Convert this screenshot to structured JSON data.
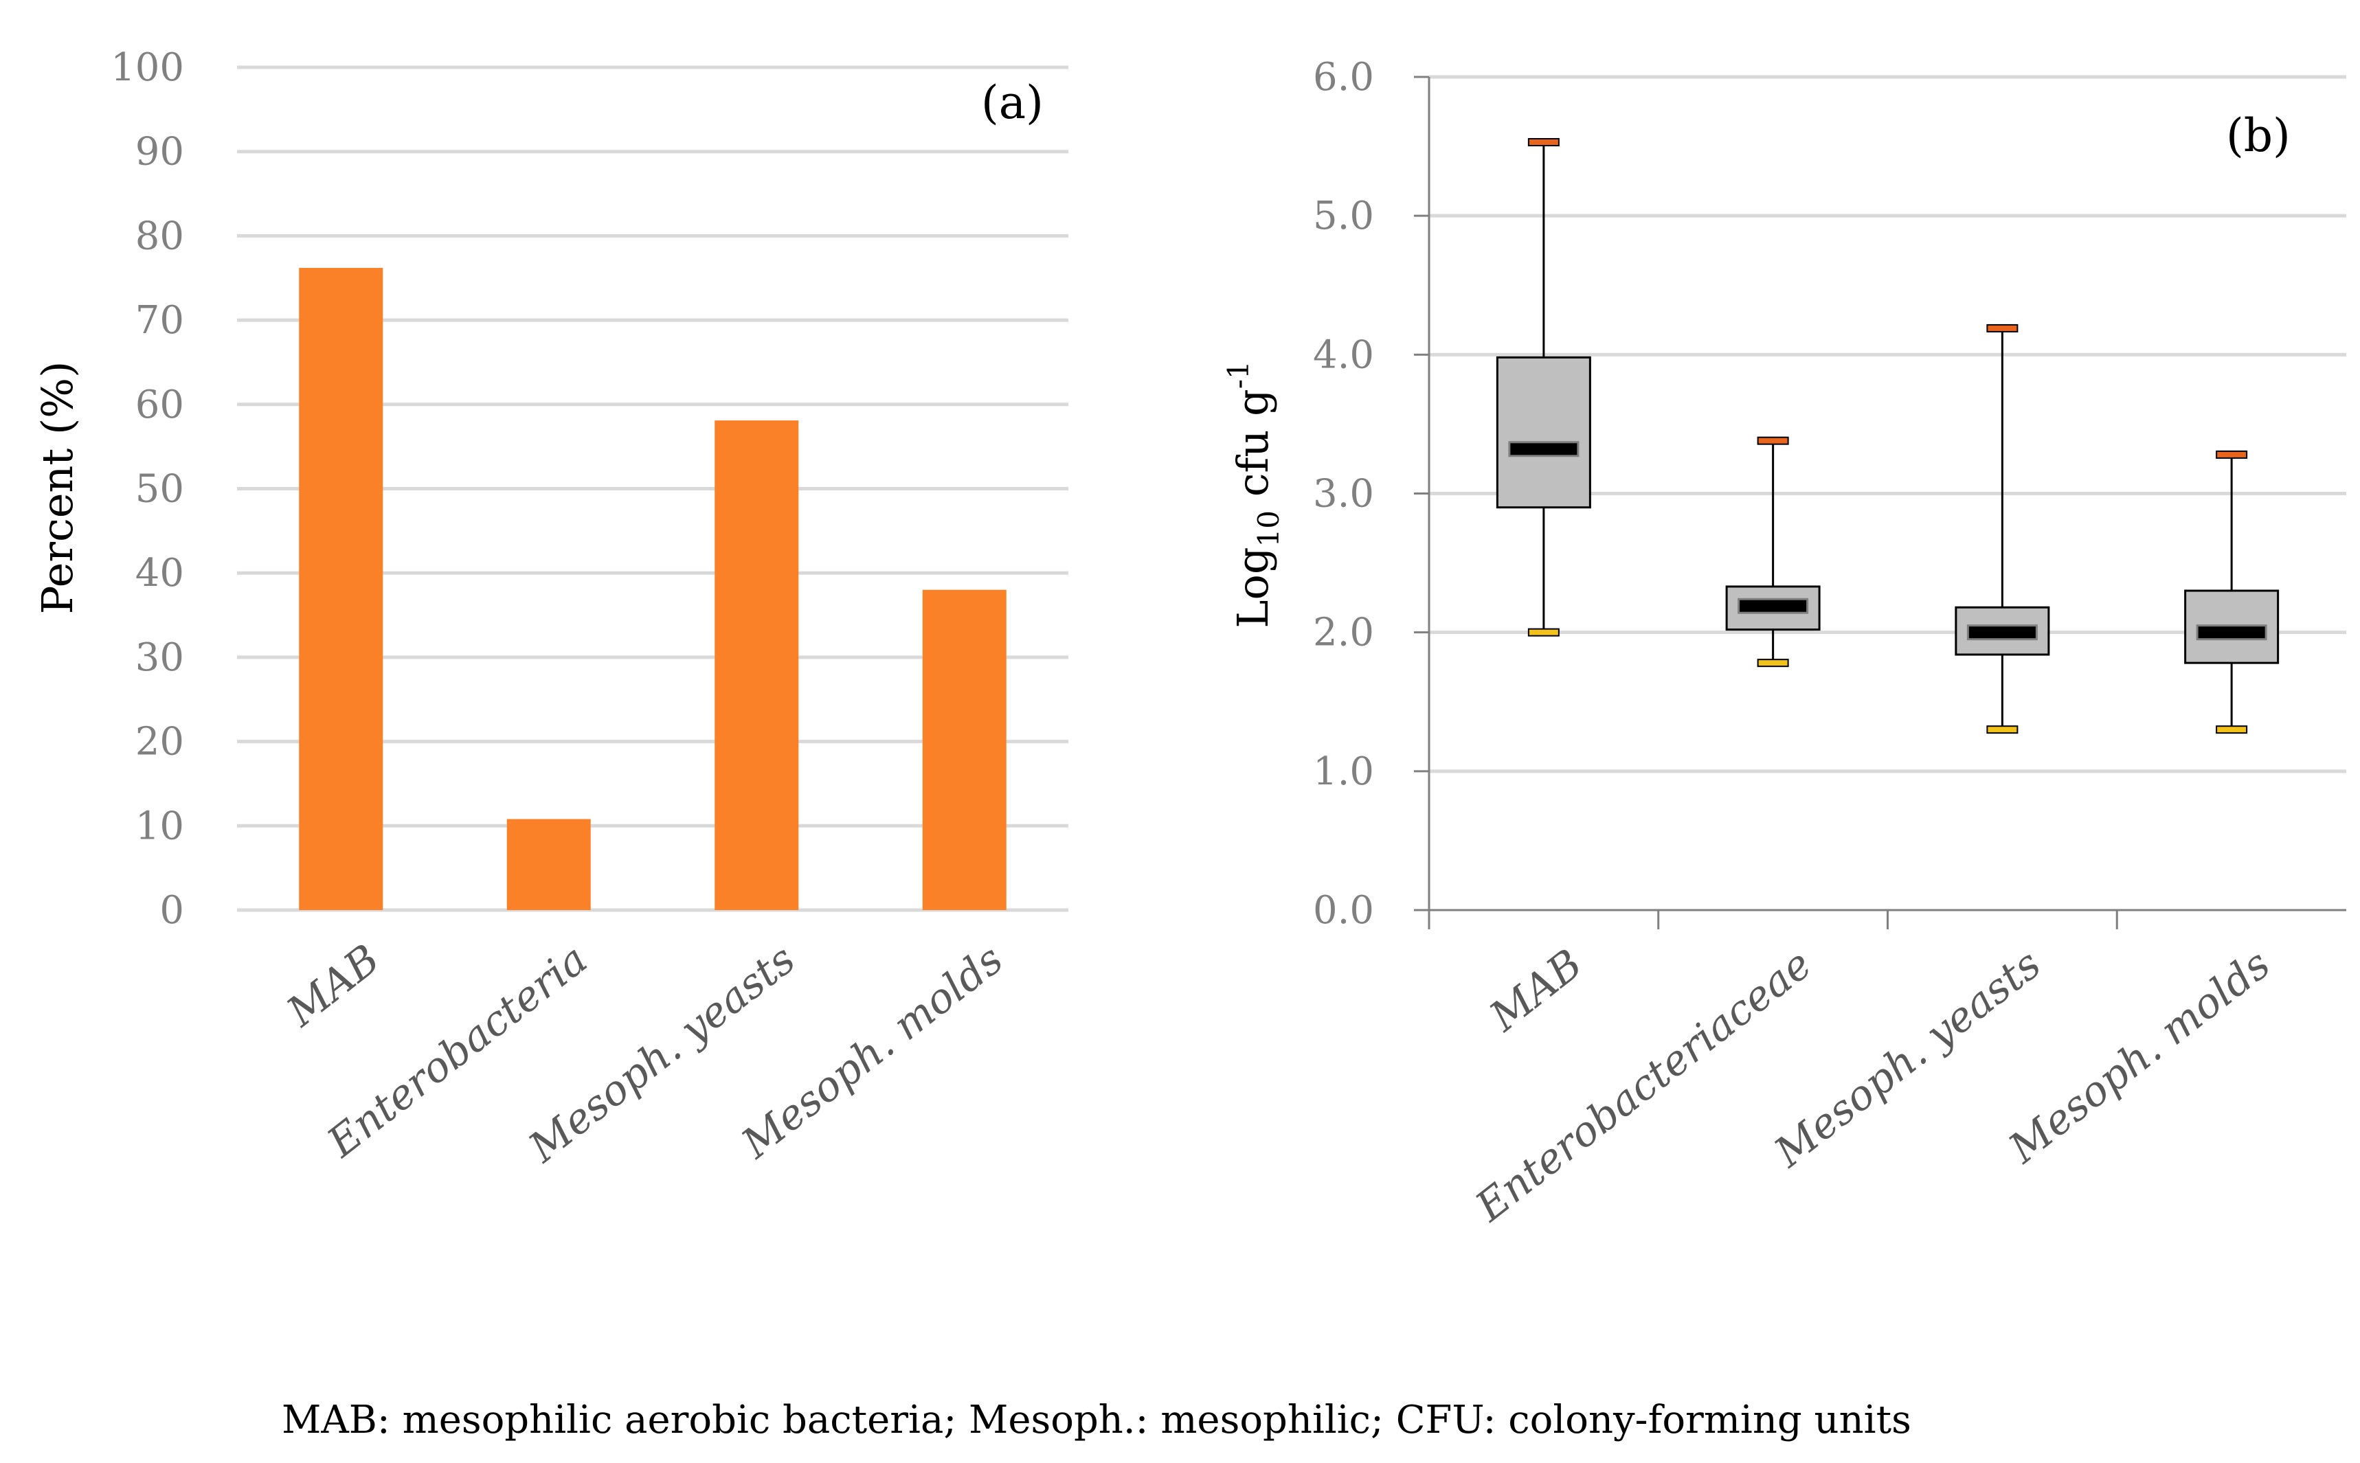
{
  "colors": {
    "bar": "#FB8129",
    "grid": "#D9D9D9",
    "box_fill": "#BFBFBF",
    "median": "#000000",
    "max_cap": "#E8651E",
    "min_cap": "#F2C21B"
  },
  "footnote": "MAB: mesophilic aerobic bacteria; Mesoph.: mesophilic; CFU: colony-forming units",
  "chart_data": [
    {
      "type": "bar",
      "panel_label": "(a)",
      "ylabel": "Percent (%)",
      "ylim": [
        0,
        100
      ],
      "yticks": [
        "0",
        "10",
        "20",
        "30",
        "40",
        "50",
        "60",
        "70",
        "80",
        "90",
        "100"
      ],
      "grid": true,
      "categories": [
        "MAB",
        "Enterobacteria",
        "Mesoph. yeasts",
        "Mesoph. molds"
      ],
      "values": [
        76.2,
        10.8,
        58.1,
        38.0
      ]
    },
    {
      "type": "box",
      "panel_label": "(b)",
      "ylabel_main": "Log",
      "ylabel_sub": "10",
      "ylabel_rest": " cfu g",
      "ylabel_sup": "-1",
      "ylim": [
        0,
        6
      ],
      "yticks": [
        "0.0",
        "1.0",
        "2.0",
        "3.0",
        "4.0",
        "5.0",
        "6.0"
      ],
      "grid": true,
      "categories": [
        "MAB",
        "Enterobacteriaceae",
        "Mesoph. yeasts",
        "Mesoph. molds"
      ],
      "boxes": [
        {
          "min": 2.0,
          "q1": 2.9,
          "median": 3.32,
          "q3": 3.98,
          "max": 5.53
        },
        {
          "min": 1.78,
          "q1": 2.02,
          "median": 2.19,
          "q3": 2.33,
          "max": 3.38
        },
        {
          "min": 1.3,
          "q1": 1.84,
          "median": 2.0,
          "q3": 2.18,
          "max": 4.19
        },
        {
          "min": 1.3,
          "q1": 1.78,
          "median": 2.0,
          "q3": 2.3,
          "max": 3.28
        }
      ]
    }
  ]
}
